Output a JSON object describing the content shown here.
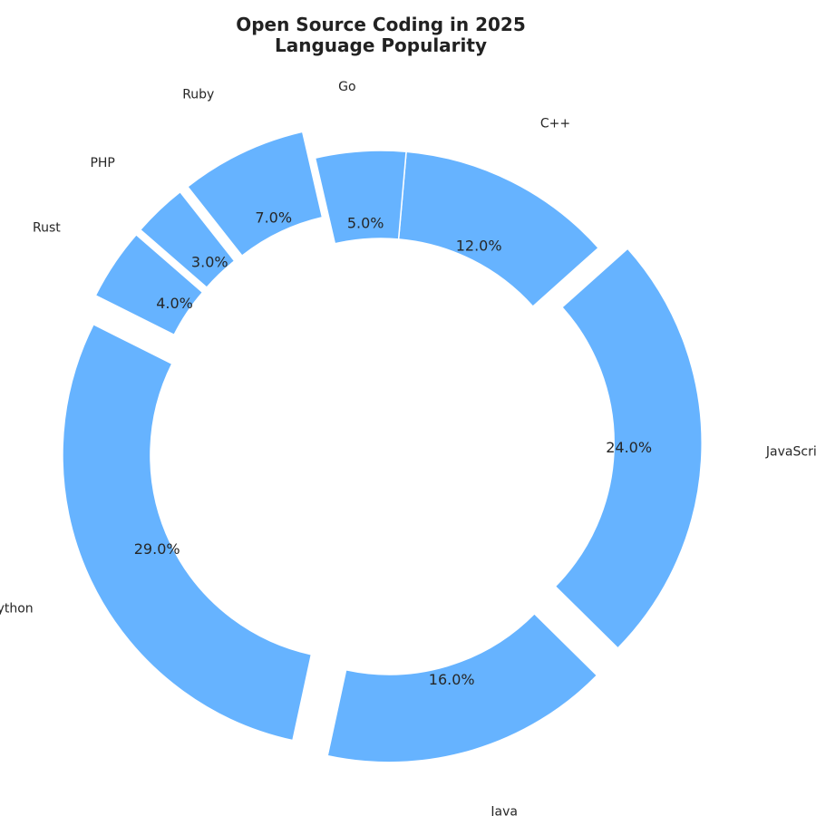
{
  "chart_data": {
    "type": "pie",
    "style": "donut",
    "title": [
      "Open Source Coding in 2025",
      "Language Popularity"
    ],
    "categories": [
      "C++",
      "JavaScript",
      "Java",
      "Python",
      "Rust",
      "PHP",
      "Ruby",
      "Go"
    ],
    "values": [
      12.0,
      24.0,
      16.0,
      29.0,
      4.0,
      3.0,
      7.0,
      5.0
    ],
    "value_labels": [
      "12.0%",
      "24.0%",
      "16.0%",
      "29.0%",
      "4.0%",
      "3.0%",
      "7.0%",
      "5.0%"
    ],
    "exploded": [
      false,
      true,
      true,
      true,
      true,
      true,
      true,
      false
    ],
    "color": "#66b3ff",
    "edge_color": "#ffffff",
    "start_angle_deg": 85,
    "direction": "clockwise",
    "legend": "none"
  }
}
